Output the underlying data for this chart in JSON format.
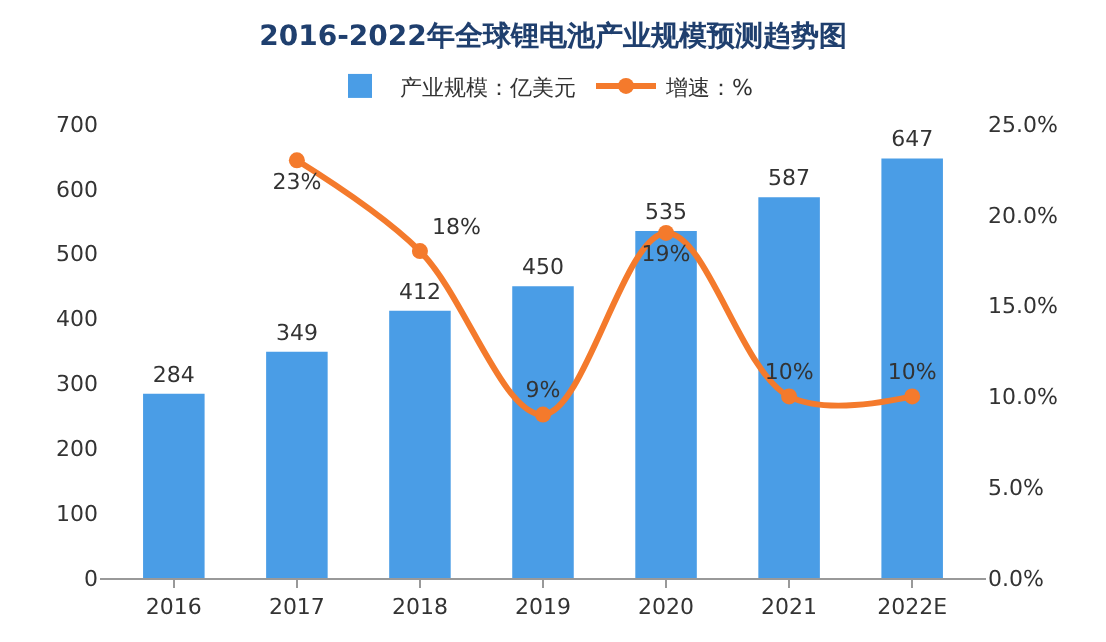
{
  "chart_data": {
    "type": "bar",
    "title": "2016-2022年全球锂电池产业规模预测趋势图",
    "categories": [
      "2016",
      "2017",
      "2018",
      "2019",
      "2020",
      "2021",
      "2022E"
    ],
    "series": [
      {
        "name": "产业规模：亿美元",
        "color": "#4a9de6",
        "values": [
          284,
          349,
          412,
          450,
          535,
          587,
          647
        ],
        "value_labels": [
          "284",
          "349",
          "412",
          "450",
          "535",
          "587",
          "647"
        ]
      },
      {
        "name": "增速：%",
        "type": "line",
        "axis": "y2",
        "color": "#f47a2c",
        "values": [
          null,
          23,
          18,
          9,
          19,
          10,
          10
        ],
        "value_labels": [
          null,
          "23%",
          "18%",
          "9%",
          "19%",
          "10%",
          "10%"
        ]
      }
    ],
    "ylim": [
      0,
      700
    ],
    "yticks": [
      0,
      100,
      200,
      300,
      400,
      500,
      600,
      700
    ],
    "y2lim": [
      0,
      25
    ],
    "y2ticks": [
      {
        "value": 0,
        "label": "0.0%"
      },
      {
        "value": 5,
        "label": "5.0%"
      },
      {
        "value": 10,
        "label": "10.0%"
      },
      {
        "value": 15,
        "label": "15.0%"
      },
      {
        "value": 20,
        "label": "20.0%"
      },
      {
        "value": 25,
        "label": "25.0%"
      }
    ],
    "legend": "top",
    "grid": false,
    "marker": "circle",
    "line_style": "solid"
  }
}
